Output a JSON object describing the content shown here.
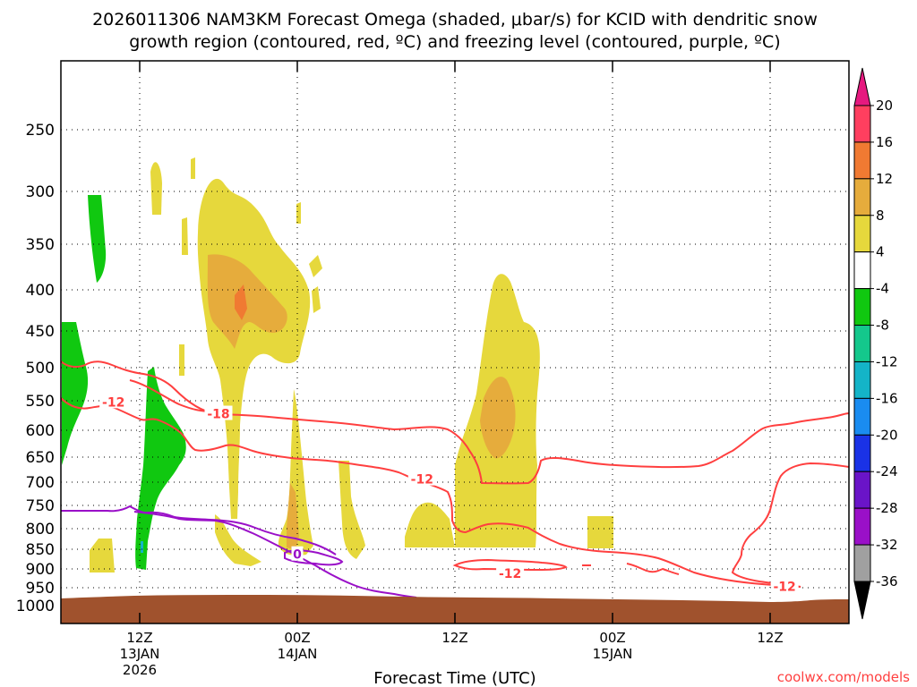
{
  "chart_data": {
    "type": "heatmap",
    "title_line1": "2026011306 NAM3KM Forecast Omega (shaded, μbar/s) for KCID with dendritic snow",
    "title_line2": "growth region (contoured, red, ºC) and freezing level (contoured, purple, ºC)",
    "xlabel": "Forecast Time (UTC)",
    "ylabel": "",
    "watermark": "coolwx.com/models",
    "y_scale": "pressure (hPa), inverted",
    "ylim": [
      1000,
      200
    ],
    "y_ticks": [
      "250",
      "300",
      "350",
      "400",
      "450",
      "500",
      "550",
      "600",
      "650",
      "700",
      "750",
      "800",
      "850",
      "900",
      "950",
      "1000"
    ],
    "x_ticks": [
      {
        "hour_offset": 6,
        "line1": "12Z",
        "line2": "13JAN",
        "line3": "2026"
      },
      {
        "hour_offset": 18,
        "line1": "00Z",
        "line2": "14JAN",
        "line3": ""
      },
      {
        "hour_offset": 30,
        "line1": "12Z",
        "line2": "",
        "line3": ""
      },
      {
        "hour_offset": 42,
        "line1": "00Z",
        "line2": "15JAN",
        "line3": ""
      },
      {
        "hour_offset": 54,
        "line1": "12Z",
        "line2": "",
        "line3": ""
      }
    ],
    "xlim_hours": [
      0,
      60
    ],
    "grid": true,
    "colorbar": {
      "labels": [
        "20",
        "16",
        "12",
        "8",
        "4",
        "-4",
        "-8",
        "-12",
        "-16",
        "-20",
        "-24",
        "-28",
        "-32",
        "-36"
      ],
      "colors": [
        "#ff3f5f",
        "#f07a32",
        "#e6ac3c",
        "#e6d83c",
        "#ffffff",
        "#10c810",
        "#14c88c",
        "#14b4c8",
        "#1a8cf0",
        "#1a32e6",
        "#6a14c8",
        "#9a10c8",
        "#a0a0a0"
      ],
      "top_arrow_color": "#e6197f",
      "bottom_arrow_color": "#000000"
    },
    "contour_labels": [
      {
        "text": "-12",
        "hour": 4.0,
        "p": 552,
        "color": "#ff3f3f"
      },
      {
        "text": "-18",
        "hour": 12.0,
        "p": 572,
        "color": "#ff3f3f"
      },
      {
        "text": "-12",
        "hour": 27.5,
        "p": 694,
        "color": "#ff3f3f"
      },
      {
        "text": "-12",
        "hour": 34.2,
        "p": 912,
        "color": "#ff3f3f"
      },
      {
        "text": "-12",
        "hour": 55.1,
        "p": 946,
        "color": "#ff3f3f"
      },
      {
        "text": "0",
        "hour": 18.0,
        "p": 863,
        "color": "#9a10c8"
      }
    ],
    "colors": {
      "dgz_contour": "#ff3f3f",
      "freezing_contour": "#9a10c8",
      "terrain": "#a0522d"
    }
  }
}
